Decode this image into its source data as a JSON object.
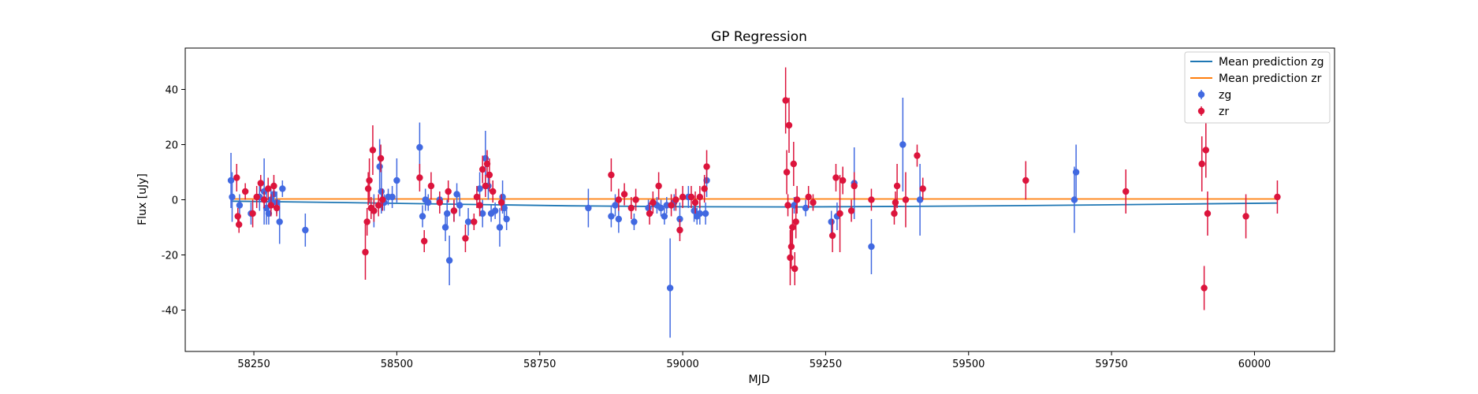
{
  "chart_data": {
    "type": "scatter",
    "title": "GP Regression",
    "xlabel": "MJD",
    "ylabel": "Flux [uJy]",
    "xlim": [
      58130,
      60140
    ],
    "ylim": [
      -55,
      55
    ],
    "x_ticks": [
      58250,
      58500,
      58750,
      59000,
      59250,
      59500,
      59750,
      60000
    ],
    "y_ticks": [
      -40,
      -20,
      0,
      20,
      40
    ],
    "legend": {
      "placement": "top-right",
      "entries": [
        "Mean prediction zg",
        "Mean prediction zr",
        "zg",
        "zr"
      ]
    },
    "colors": {
      "zg_points": "#4169e1",
      "zr_points": "#dc143c",
      "zg_mean": "#1f77b4",
      "zr_mean": "#ff7f0e"
    },
    "mean_lines": [
      {
        "name": "Mean prediction zg",
        "x": [
          58210,
          58400,
          58600,
          58800,
          59000,
          59200,
          59400,
          59600,
          59800,
          60040
        ],
        "y": [
          -0.5,
          -1.0,
          -1.6,
          -2.2,
          -2.5,
          -2.6,
          -2.4,
          -2.1,
          -1.7,
          -1.2
        ]
      },
      {
        "name": "Mean prediction zr",
        "x": [
          58210,
          60040
        ],
        "y": [
          0.3,
          0.3
        ]
      }
    ],
    "series": [
      {
        "name": "zg",
        "points": [
          {
            "x": 58210,
            "y": 7,
            "err": 10
          },
          {
            "x": 58212,
            "y": 1,
            "err": 9
          },
          {
            "x": 58225,
            "y": -2,
            "err": 4
          },
          {
            "x": 58245,
            "y": -5,
            "err": 4
          },
          {
            "x": 58260,
            "y": 1,
            "err": 5
          },
          {
            "x": 58268,
            "y": 3,
            "err": 12
          },
          {
            "x": 58272,
            "y": -3,
            "err": 6
          },
          {
            "x": 58276,
            "y": -5,
            "err": 4
          },
          {
            "x": 58280,
            "y": 0,
            "err": 4
          },
          {
            "x": 58285,
            "y": 2,
            "err": 5
          },
          {
            "x": 58290,
            "y": -1,
            "err": 4
          },
          {
            "x": 58295,
            "y": -8,
            "err": 8
          },
          {
            "x": 58300,
            "y": 4,
            "err": 3
          },
          {
            "x": 58340,
            "y": -11,
            "err": 6
          },
          {
            "x": 58460,
            "y": -4,
            "err": 6
          },
          {
            "x": 58470,
            "y": 12,
            "err": 10
          },
          {
            "x": 58473,
            "y": 3,
            "err": 8
          },
          {
            "x": 58478,
            "y": -1,
            "err": 3
          },
          {
            "x": 58485,
            "y": 1,
            "err": 3
          },
          {
            "x": 58492,
            "y": 1,
            "err": 4
          },
          {
            "x": 58500,
            "y": 7,
            "err": 8
          },
          {
            "x": 58540,
            "y": 19,
            "err": 9
          },
          {
            "x": 58545,
            "y": -6,
            "err": 4
          },
          {
            "x": 58550,
            "y": 0,
            "err": 4
          },
          {
            "x": 58555,
            "y": -1,
            "err": 3
          },
          {
            "x": 58575,
            "y": 0,
            "err": 3
          },
          {
            "x": 58585,
            "y": -10,
            "err": 5
          },
          {
            "x": 58588,
            "y": -5,
            "err": 5
          },
          {
            "x": 58592,
            "y": -22,
            "err": 9
          },
          {
            "x": 58600,
            "y": -4,
            "err": 4
          },
          {
            "x": 58605,
            "y": 2,
            "err": 4
          },
          {
            "x": 58610,
            "y": -2,
            "err": 4
          },
          {
            "x": 58625,
            "y": -8,
            "err": 5
          },
          {
            "x": 58645,
            "y": 4,
            "err": 6
          },
          {
            "x": 58650,
            "y": -5,
            "err": 5
          },
          {
            "x": 58655,
            "y": 15,
            "err": 10
          },
          {
            "x": 58660,
            "y": 5,
            "err": 5
          },
          {
            "x": 58665,
            "y": -5,
            "err": 3
          },
          {
            "x": 58672,
            "y": -4,
            "err": 3
          },
          {
            "x": 58680,
            "y": -10,
            "err": 7
          },
          {
            "x": 58685,
            "y": 1,
            "err": 6
          },
          {
            "x": 58688,
            "y": -3,
            "err": 4
          },
          {
            "x": 58692,
            "y": -7,
            "err": 4
          },
          {
            "x": 58835,
            "y": -3,
            "err": 7
          },
          {
            "x": 58875,
            "y": -6,
            "err": 4
          },
          {
            "x": 58882,
            "y": -2,
            "err": 4
          },
          {
            "x": 58888,
            "y": -7,
            "err": 5
          },
          {
            "x": 58915,
            "y": -8,
            "err": 3
          },
          {
            "x": 58940,
            "y": -3,
            "err": 3
          },
          {
            "x": 58955,
            "y": -2,
            "err": 3
          },
          {
            "x": 58962,
            "y": -3,
            "err": 3
          },
          {
            "x": 58968,
            "y": -6,
            "err": 3
          },
          {
            "x": 58972,
            "y": -2,
            "err": 3
          },
          {
            "x": 58978,
            "y": -32,
            "err": 18
          },
          {
            "x": 58985,
            "y": -1,
            "err": 3
          },
          {
            "x": 58995,
            "y": -7,
            "err": 6
          },
          {
            "x": 59010,
            "y": 1,
            "err": 4
          },
          {
            "x": 59020,
            "y": -4,
            "err": 4
          },
          {
            "x": 59025,
            "y": -6,
            "err": 3
          },
          {
            "x": 59030,
            "y": -5,
            "err": 4
          },
          {
            "x": 59040,
            "y": -5,
            "err": 4
          },
          {
            "x": 59042,
            "y": 7,
            "err": 6
          },
          {
            "x": 59195,
            "y": -2,
            "err": 3
          },
          {
            "x": 59215,
            "y": -3,
            "err": 3
          },
          {
            "x": 59260,
            "y": -8,
            "err": 4
          },
          {
            "x": 59270,
            "y": -6,
            "err": 5
          },
          {
            "x": 59300,
            "y": 6,
            "err": 13
          },
          {
            "x": 59330,
            "y": -17,
            "err": 10
          },
          {
            "x": 59385,
            "y": 20,
            "err": 17
          },
          {
            "x": 59415,
            "y": 0,
            "err": 13
          },
          {
            "x": 59685,
            "y": 0,
            "err": 12
          },
          {
            "x": 59688,
            "y": 10,
            "err": 10
          }
        ]
      },
      {
        "name": "zr",
        "points": [
          {
            "x": 58220,
            "y": 8,
            "err": 5
          },
          {
            "x": 58222,
            "y": -6,
            "err": 3
          },
          {
            "x": 58224,
            "y": -9,
            "err": 3
          },
          {
            "x": 58235,
            "y": 3,
            "err": 3
          },
          {
            "x": 58248,
            "y": -5,
            "err": 5
          },
          {
            "x": 58255,
            "y": 1,
            "err": 4
          },
          {
            "x": 58262,
            "y": 6,
            "err": 3
          },
          {
            "x": 58268,
            "y": 0,
            "err": 3
          },
          {
            "x": 58275,
            "y": 4,
            "err": 4
          },
          {
            "x": 58280,
            "y": -2,
            "err": 4
          },
          {
            "x": 58285,
            "y": 5,
            "err": 4
          },
          {
            "x": 58290,
            "y": -3,
            "err": 3
          },
          {
            "x": 58445,
            "y": -19,
            "err": 10
          },
          {
            "x": 58448,
            "y": -8,
            "err": 5
          },
          {
            "x": 58450,
            "y": 4,
            "err": 6
          },
          {
            "x": 58452,
            "y": 7,
            "err": 8
          },
          {
            "x": 58455,
            "y": -3,
            "err": 4
          },
          {
            "x": 58458,
            "y": 18,
            "err": 9
          },
          {
            "x": 58460,
            "y": -4,
            "err": 4
          },
          {
            "x": 58468,
            "y": -2,
            "err": 4
          },
          {
            "x": 58472,
            "y": 15,
            "err": 5
          },
          {
            "x": 58475,
            "y": 0,
            "err": 4
          },
          {
            "x": 58540,
            "y": 8,
            "err": 5
          },
          {
            "x": 58548,
            "y": -15,
            "err": 4
          },
          {
            "x": 58560,
            "y": 5,
            "err": 5
          },
          {
            "x": 58575,
            "y": -1,
            "err": 4
          },
          {
            "x": 58590,
            "y": 3,
            "err": 4
          },
          {
            "x": 58600,
            "y": -4,
            "err": 4
          },
          {
            "x": 58620,
            "y": -14,
            "err": 5
          },
          {
            "x": 58635,
            "y": -8,
            "err": 3
          },
          {
            "x": 58640,
            "y": 1,
            "err": 4
          },
          {
            "x": 58645,
            "y": -2,
            "err": 4
          },
          {
            "x": 58650,
            "y": 11,
            "err": 5
          },
          {
            "x": 58655,
            "y": 5,
            "err": 4
          },
          {
            "x": 58658,
            "y": 13,
            "err": 5
          },
          {
            "x": 58662,
            "y": 9,
            "err": 6
          },
          {
            "x": 58668,
            "y": 3,
            "err": 4
          },
          {
            "x": 58683,
            "y": -1,
            "err": 3
          },
          {
            "x": 58875,
            "y": 9,
            "err": 6
          },
          {
            "x": 58888,
            "y": 0,
            "err": 4
          },
          {
            "x": 58898,
            "y": 2,
            "err": 4
          },
          {
            "x": 58910,
            "y": -3,
            "err": 4
          },
          {
            "x": 58918,
            "y": 0,
            "err": 4
          },
          {
            "x": 58942,
            "y": -5,
            "err": 4
          },
          {
            "x": 58948,
            "y": -1,
            "err": 4
          },
          {
            "x": 58958,
            "y": 5,
            "err": 5
          },
          {
            "x": 58980,
            "y": -2,
            "err": 4
          },
          {
            "x": 58988,
            "y": 0,
            "err": 4
          },
          {
            "x": 58995,
            "y": -11,
            "err": 4
          },
          {
            "x": 59000,
            "y": 1,
            "err": 4
          },
          {
            "x": 59015,
            "y": 1,
            "err": 4
          },
          {
            "x": 59022,
            "y": -1,
            "err": 4
          },
          {
            "x": 59030,
            "y": 1,
            "err": 4
          },
          {
            "x": 59038,
            "y": 4,
            "err": 5
          },
          {
            "x": 59042,
            "y": 12,
            "err": 6
          },
          {
            "x": 59180,
            "y": 36,
            "err": 12
          },
          {
            "x": 59182,
            "y": 10,
            "err": 8
          },
          {
            "x": 59184,
            "y": -2,
            "err": 4
          },
          {
            "x": 59186,
            "y": 27,
            "err": 10
          },
          {
            "x": 59188,
            "y": -21,
            "err": 10
          },
          {
            "x": 59190,
            "y": -17,
            "err": 8
          },
          {
            "x": 59192,
            "y": -10,
            "err": 7
          },
          {
            "x": 59194,
            "y": 13,
            "err": 8
          },
          {
            "x": 59196,
            "y": -25,
            "err": 6
          },
          {
            "x": 59198,
            "y": -8,
            "err": 6
          },
          {
            "x": 59200,
            "y": 0,
            "err": 5
          },
          {
            "x": 59220,
            "y": 1,
            "err": 4
          },
          {
            "x": 59228,
            "y": -1,
            "err": 3
          },
          {
            "x": 59262,
            "y": -13,
            "err": 6
          },
          {
            "x": 59268,
            "y": 8,
            "err": 5
          },
          {
            "x": 59275,
            "y": -5,
            "err": 14
          },
          {
            "x": 59280,
            "y": 7,
            "err": 5
          },
          {
            "x": 59295,
            "y": -4,
            "err": 4
          },
          {
            "x": 59300,
            "y": 5,
            "err": 5
          },
          {
            "x": 59330,
            "y": 0,
            "err": 4
          },
          {
            "x": 59370,
            "y": -5,
            "err": 4
          },
          {
            "x": 59372,
            "y": -1,
            "err": 4
          },
          {
            "x": 59375,
            "y": 5,
            "err": 8
          },
          {
            "x": 59390,
            "y": 0,
            "err": 10
          },
          {
            "x": 59410,
            "y": 16,
            "err": 4
          },
          {
            "x": 59420,
            "y": 4,
            "err": 4
          },
          {
            "x": 59600,
            "y": 7,
            "err": 7
          },
          {
            "x": 59775,
            "y": 3,
            "err": 8
          },
          {
            "x": 59908,
            "y": 13,
            "err": 10
          },
          {
            "x": 59912,
            "y": -32,
            "err": 8
          },
          {
            "x": 59915,
            "y": 18,
            "err": 10
          },
          {
            "x": 59918,
            "y": -5,
            "err": 8
          },
          {
            "x": 59985,
            "y": -6,
            "err": 8
          },
          {
            "x": 60040,
            "y": 1,
            "err": 6
          }
        ]
      }
    ]
  }
}
